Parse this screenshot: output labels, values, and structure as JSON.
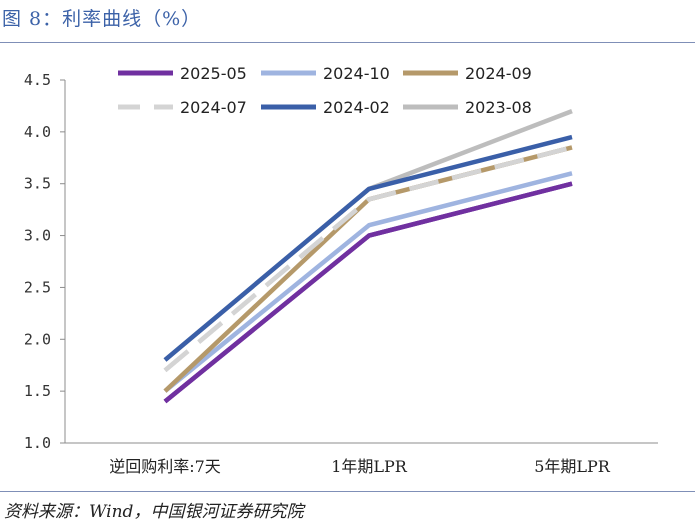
{
  "header": {
    "title": "图 8：利率曲线（%）"
  },
  "footer": {
    "source": "资料来源：Wind，中国银河证券研究院"
  },
  "chart_data": {
    "type": "line",
    "categories": [
      "逆回购利率:7天",
      "1年期LPR",
      "5年期LPR"
    ],
    "ylim": [
      1.0,
      4.5
    ],
    "yticks": [
      "1.0",
      "1.5",
      "2.0",
      "2.5",
      "3.0",
      "3.5",
      "4.0",
      "4.5"
    ],
    "legend_position": "top",
    "grid": false,
    "series": [
      {
        "name": "2025-05",
        "values": [
          1.4,
          3.0,
          3.5
        ],
        "color": "#7030a0",
        "dash": "solid"
      },
      {
        "name": "2024-10",
        "values": [
          1.5,
          3.1,
          3.6
        ],
        "color": "#9fb4e0",
        "dash": "solid"
      },
      {
        "name": "2024-09",
        "values": [
          1.5,
          3.35,
          3.85
        ],
        "color": "#b5996a",
        "dash": "solid"
      },
      {
        "name": "2024-07",
        "values": [
          1.7,
          3.35,
          3.85
        ],
        "color": "#d4d4d4",
        "dash": "dashed"
      },
      {
        "name": "2024-02",
        "values": [
          1.8,
          3.45,
          3.95
        ],
        "color": "#3a5fa8",
        "dash": "solid"
      },
      {
        "name": "2023-08",
        "values": [
          1.8,
          3.45,
          4.2
        ],
        "color": "#bdbdbd",
        "dash": "solid"
      }
    ]
  }
}
